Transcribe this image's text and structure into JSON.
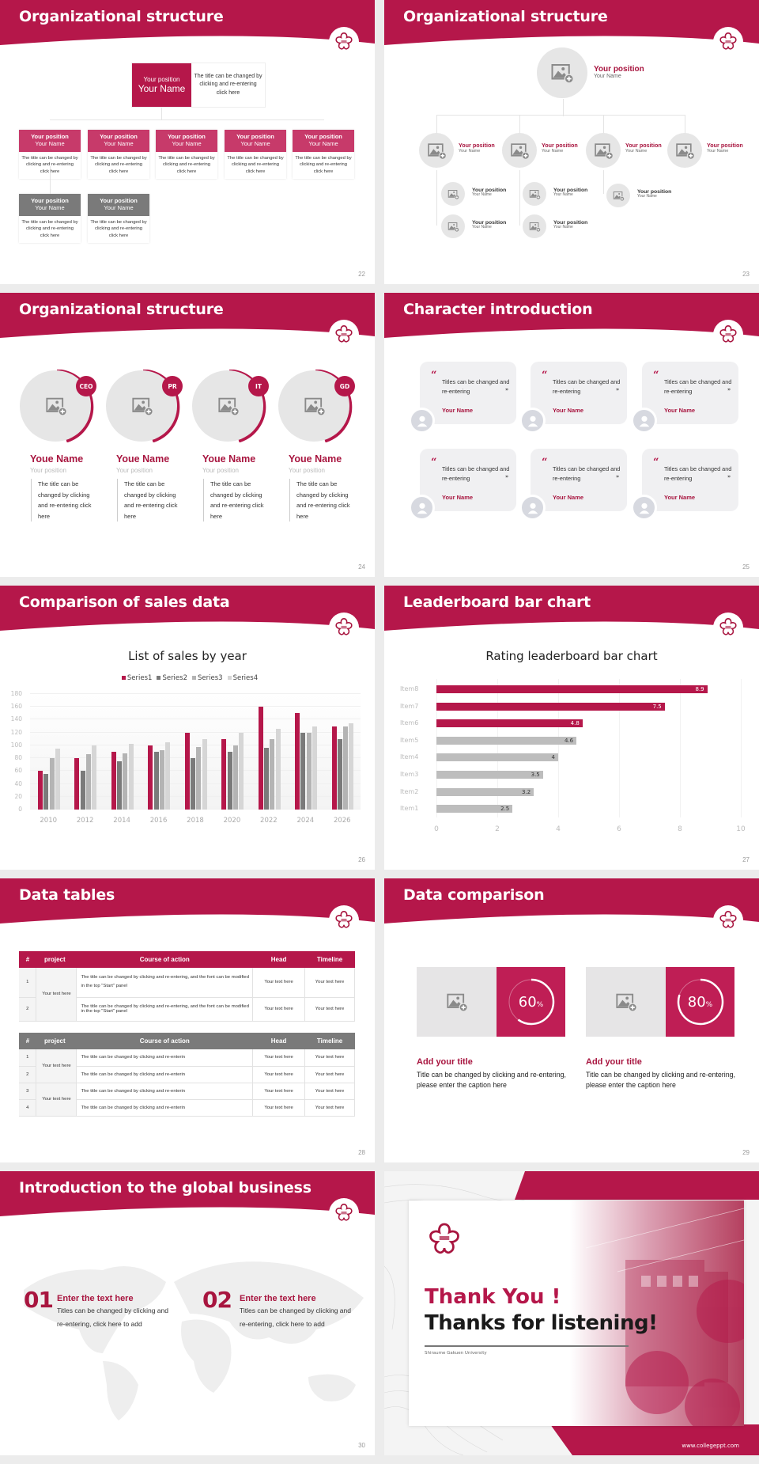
{
  "theme": {
    "accent": "#b5174a",
    "accent_dark": "#a8153f",
    "grey_dark": "#7a7a7a",
    "grey_mid": "#b4b4b4",
    "grey_light": "#d6d6d6"
  },
  "slides": {
    "s22": {
      "title": "Organizational structure",
      "page": "22",
      "top": {
        "position": "Your position",
        "name": "Your Name",
        "desc": "The title can be changed by clicking and re-entering click here"
      },
      "cards": [
        {
          "position": "Your position",
          "name": "Your Name",
          "desc": "The title can be changed by clicking and re-entering click here",
          "color": "red"
        },
        {
          "position": "Your position",
          "name": "Your Name",
          "desc": "The title can be changed by clicking and re-entering click here",
          "color": "red"
        },
        {
          "position": "Your position",
          "name": "Your Name",
          "desc": "The title can be changed by clicking and re-entering click here",
          "color": "red"
        },
        {
          "position": "Your position",
          "name": "Your Name",
          "desc": "The title can be changed by clicking and re-entering click here",
          "color": "red"
        },
        {
          "position": "Your position",
          "name": "Your Name",
          "desc": "The title can be changed by clicking and re-entering click here",
          "color": "red"
        },
        {
          "position": "Your position",
          "name": "Your Name",
          "desc": "The title can be changed by clicking and re-entering click here",
          "color": "grey"
        },
        {
          "position": "Your position",
          "name": "Your Name",
          "desc": "The title can be changed by clicking and re-entering click here",
          "color": "grey"
        }
      ]
    },
    "s23": {
      "title": "Organizational structure",
      "page": "23",
      "top": {
        "position": "Your position",
        "name": "Your Name"
      },
      "level2": [
        {
          "position": "Your position",
          "name": "Your Name"
        },
        {
          "position": "Your position",
          "name": "Your Name"
        },
        {
          "position": "Your position",
          "name": "Your Name"
        },
        {
          "position": "Your position",
          "name": "Your Name"
        }
      ],
      "level3": [
        {
          "position": "Your position",
          "name": "Your Name"
        },
        {
          "position": "Your position",
          "name": "Your Name"
        },
        {
          "position": "Your position",
          "name": "Your Name"
        },
        {
          "position": "Your position",
          "name": "Your Name"
        },
        {
          "position": "Your position",
          "name": "Your Name"
        }
      ]
    },
    "s24": {
      "title": "Organizational structure",
      "page": "24",
      "members": [
        {
          "badge": "CEO",
          "name": "Youe Name",
          "position": "Your position",
          "desc": "The title can be changed by clicking and re-entering click here"
        },
        {
          "badge": "PR",
          "name": "Youe Name",
          "position": "Your position",
          "desc": "The title can be changed by clicking and re-entering click here"
        },
        {
          "badge": "IT",
          "name": "Youe Name",
          "position": "Your position",
          "desc": "The title can be changed by clicking and re-entering click here"
        },
        {
          "badge": "GD",
          "name": "Youe Name",
          "position": "Your position",
          "desc": "The title can be changed by clicking and re-entering click here"
        }
      ]
    },
    "s25": {
      "title": "Character introduction",
      "page": "25",
      "quotes": [
        {
          "text": "Titles can be changed and re-entering",
          "name": "Your Name"
        },
        {
          "text": "Titles can be changed and re-entering",
          "name": "Your Name"
        },
        {
          "text": "Titles can be changed and re-entering",
          "name": "Your Name"
        },
        {
          "text": "Titles can be changed and re-entering",
          "name": "Your Name"
        },
        {
          "text": "Titles can be changed and re-entering",
          "name": "Your Name"
        },
        {
          "text": "Titles can be changed and re-entering",
          "name": "Your Name"
        }
      ],
      "open_quote": "“",
      "close_quote": "”"
    },
    "s26": {
      "title": "Comparison of sales data",
      "page": "26"
    },
    "s27": {
      "title": "Leaderboard bar chart",
      "page": "27"
    },
    "s28": {
      "title": "Data tables",
      "page": "28",
      "headers": [
        "#",
        "project",
        "Course of action",
        "Head",
        "Timeline"
      ],
      "table1": {
        "project": "Your text here",
        "rows": [
          {
            "n": "1",
            "action": "The title can be changed by clicking and re-entering, and the font can be modified in the top \"Start\" panel",
            "head": "Your text here",
            "timeline": "Your text here"
          },
          {
            "n": "2",
            "action": "The title can be changed by clicking and re-entering, and the font can be modified in the top \"Start\" panel",
            "head": "Your text here",
            "timeline": "Your text here"
          }
        ]
      },
      "table2": {
        "projects": [
          "Your text here",
          "Your text here"
        ],
        "rows": [
          {
            "n": "1",
            "action": "The title can be changed by clicking and re-enterin",
            "head": "Your text here",
            "timeline": "Your text here"
          },
          {
            "n": "2",
            "action": "The title can be changed by clicking and re-enterin",
            "head": "Your text here",
            "timeline": "Your text here"
          },
          {
            "n": "3",
            "action": "The title can be changed by clicking and re-enterin",
            "head": "Your text here",
            "timeline": "Your text here"
          },
          {
            "n": "4",
            "action": "The title can be changed by clicking and re-enterin",
            "head": "Your text here",
            "timeline": "Your text here"
          }
        ]
      }
    },
    "s29": {
      "title": "Data comparison",
      "page": "29",
      "items": [
        {
          "percent": "60",
          "unit": "%",
          "value": 60,
          "heading": "Add your title",
          "text": "Title can be changed by clicking and re-entering, please enter the caption here"
        },
        {
          "percent": "80",
          "unit": "%",
          "value": 80,
          "heading": "Add your title",
          "text": "Title can be changed by clicking and re-entering, please enter the caption here"
        }
      ]
    },
    "s30": {
      "title": "Introduction to the global business",
      "page": "30",
      "items": [
        {
          "num": "01",
          "heading": "Enter the text here",
          "text": "Titles can be changed by clicking and re-entering, click here to add"
        },
        {
          "num": "02",
          "heading": "Enter the text here",
          "text": "Titles can be changed by clicking and re-entering, click here to add"
        }
      ]
    },
    "s31": {
      "thank_you": "Thank You !",
      "thanks": "Thanks for listening!",
      "university": "Shiraume Gakuen University",
      "website": "www.collegeppt.com"
    }
  },
  "chart_data": [
    {
      "type": "bar",
      "title": "List of sales by year",
      "categories": [
        "2010",
        "2012",
        "2014",
        "2016",
        "2018",
        "2020",
        "2022",
        "2024",
        "2026"
      ],
      "series": [
        {
          "name": "Series1",
          "color": "#b5174a",
          "values": [
            60,
            80,
            90,
            100,
            120,
            110,
            160,
            150,
            130
          ]
        },
        {
          "name": "Series2",
          "color": "#7a7a7a",
          "values": [
            55,
            60,
            75,
            90,
            80,
            90,
            96,
            120,
            110
          ]
        },
        {
          "name": "Series3",
          "color": "#b4b4b4",
          "values": [
            80,
            86,
            88,
            92,
            98,
            100,
            110,
            120,
            130
          ]
        },
        {
          "name": "Series4",
          "color": "#d6d6d6",
          "values": [
            95,
            100,
            102,
            105,
            110,
            120,
            126,
            130,
            135
          ]
        }
      ],
      "xlabel": "",
      "ylabel": "",
      "ylim": [
        0,
        180
      ],
      "yticks": [
        0,
        20,
        40,
        60,
        80,
        100,
        120,
        140,
        160,
        180
      ],
      "legend_position": "top",
      "grid": true
    },
    {
      "type": "bar",
      "orientation": "horizontal",
      "title": "Rating leaderboard bar chart",
      "categories": [
        "Item8",
        "Item7",
        "Item6",
        "Item5",
        "Item4",
        "Item3",
        "Item2",
        "Item1"
      ],
      "values": [
        8.9,
        7.5,
        4.8,
        4.6,
        4,
        3.5,
        3.2,
        2.5
      ],
      "colors": [
        "#b5174a",
        "#b5174a",
        "#b5174a",
        "#bdbdbd",
        "#bdbdbd",
        "#bdbdbd",
        "#bdbdbd",
        "#bdbdbd"
      ],
      "xlim": [
        0,
        10
      ],
      "xticks": [
        0,
        2,
        4,
        6,
        8,
        10
      ],
      "data_labels": true,
      "grid": true
    }
  ]
}
